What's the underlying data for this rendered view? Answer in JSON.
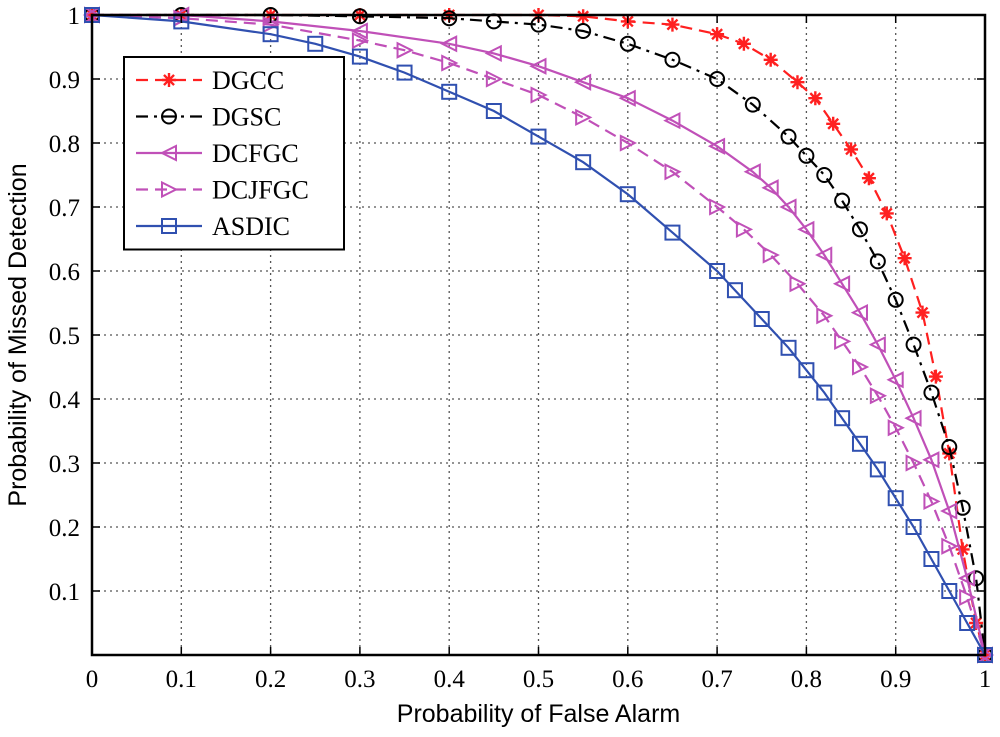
{
  "chart_data": {
    "type": "line",
    "title": "",
    "xlabel": "Probability of False Alarm",
    "ylabel": "Probability of Missed Detection",
    "xlim": [
      0,
      1
    ],
    "ylim": [
      0,
      1
    ],
    "xticks": [
      0,
      0.1,
      0.2,
      0.3,
      0.4,
      0.5,
      0.6,
      0.7,
      0.8,
      0.9,
      1
    ],
    "yticks": [
      0.1,
      0.2,
      0.3,
      0.4,
      0.5,
      0.6,
      0.7,
      0.8,
      0.9,
      1
    ],
    "xtick_labels": [
      "0",
      "0.1",
      "0.2",
      "0.3",
      "0.4",
      "0.5",
      "0.6",
      "0.7",
      "0.8",
      "0.9",
      "1"
    ],
    "ytick_labels": [
      "0.1",
      "0.2",
      "0.3",
      "0.4",
      "0.5",
      "0.6",
      "0.7",
      "0.8",
      "0.9",
      "1"
    ],
    "grid": true,
    "legend_position": "top-left",
    "series": [
      {
        "name": "DGCC",
        "color": "#ff2020",
        "marker": "asterisk",
        "linestyle": "dashed",
        "x": [
          0,
          0.1,
          0.2,
          0.3,
          0.4,
          0.5,
          0.55,
          0.6,
          0.65,
          0.7,
          0.73,
          0.76,
          0.79,
          0.81,
          0.83,
          0.85,
          0.87,
          0.89,
          0.91,
          0.93,
          0.945,
          0.96,
          0.975,
          0.99,
          1.0
        ],
        "y": [
          1.0,
          1.0,
          1.0,
          1.0,
          1.0,
          1.0,
          0.998,
          0.99,
          0.985,
          0.97,
          0.955,
          0.93,
          0.895,
          0.87,
          0.83,
          0.79,
          0.745,
          0.69,
          0.62,
          0.535,
          0.435,
          0.315,
          0.165,
          0.05,
          0.0
        ]
      },
      {
        "name": "DGSC",
        "color": "#000000",
        "marker": "circle",
        "linestyle": "dashdot",
        "x": [
          0,
          0.1,
          0.2,
          0.3,
          0.4,
          0.45,
          0.5,
          0.55,
          0.6,
          0.65,
          0.7,
          0.74,
          0.78,
          0.8,
          0.82,
          0.84,
          0.86,
          0.88,
          0.9,
          0.92,
          0.94,
          0.96,
          0.975,
          0.99,
          1.0
        ],
        "y": [
          1.0,
          1.0,
          1.0,
          0.998,
          0.995,
          0.99,
          0.985,
          0.975,
          0.955,
          0.93,
          0.9,
          0.86,
          0.81,
          0.78,
          0.75,
          0.71,
          0.665,
          0.615,
          0.555,
          0.485,
          0.41,
          0.325,
          0.23,
          0.12,
          0.0
        ]
      },
      {
        "name": "DCFGC",
        "color": "#c050b8",
        "marker": "triangle-left",
        "linestyle": "solid",
        "x": [
          0,
          0.1,
          0.2,
          0.3,
          0.4,
          0.45,
          0.5,
          0.55,
          0.6,
          0.65,
          0.7,
          0.74,
          0.76,
          0.78,
          0.8,
          0.82,
          0.84,
          0.86,
          0.88,
          0.9,
          0.92,
          0.94,
          0.96,
          0.98,
          1.0
        ],
        "y": [
          1.0,
          1.0,
          0.99,
          0.975,
          0.955,
          0.94,
          0.92,
          0.895,
          0.87,
          0.835,
          0.795,
          0.755,
          0.73,
          0.7,
          0.665,
          0.625,
          0.58,
          0.535,
          0.485,
          0.43,
          0.37,
          0.305,
          0.225,
          0.12,
          0.0
        ]
      },
      {
        "name": "DCJFGC",
        "color": "#c050b8",
        "marker": "triangle-right",
        "linestyle": "dashed",
        "x": [
          0,
          0.1,
          0.2,
          0.3,
          0.35,
          0.4,
          0.45,
          0.5,
          0.55,
          0.6,
          0.65,
          0.7,
          0.73,
          0.76,
          0.79,
          0.82,
          0.84,
          0.86,
          0.88,
          0.9,
          0.92,
          0.94,
          0.96,
          0.98,
          1.0
        ],
        "y": [
          1.0,
          0.995,
          0.985,
          0.96,
          0.945,
          0.925,
          0.9,
          0.875,
          0.84,
          0.8,
          0.755,
          0.7,
          0.665,
          0.625,
          0.58,
          0.53,
          0.49,
          0.45,
          0.405,
          0.355,
          0.3,
          0.24,
          0.17,
          0.09,
          0.0
        ]
      },
      {
        "name": "ASDIC",
        "color": "#3050b0",
        "marker": "square",
        "linestyle": "solid",
        "x": [
          0,
          0.1,
          0.2,
          0.25,
          0.3,
          0.35,
          0.4,
          0.45,
          0.5,
          0.55,
          0.6,
          0.65,
          0.7,
          0.72,
          0.75,
          0.78,
          0.8,
          0.82,
          0.84,
          0.86,
          0.88,
          0.9,
          0.92,
          0.94,
          0.96,
          0.98,
          1.0
        ],
        "y": [
          1.0,
          0.99,
          0.97,
          0.955,
          0.935,
          0.91,
          0.88,
          0.85,
          0.81,
          0.77,
          0.72,
          0.66,
          0.6,
          0.57,
          0.525,
          0.48,
          0.445,
          0.41,
          0.37,
          0.33,
          0.29,
          0.245,
          0.2,
          0.15,
          0.1,
          0.05,
          0.0
        ]
      }
    ]
  }
}
